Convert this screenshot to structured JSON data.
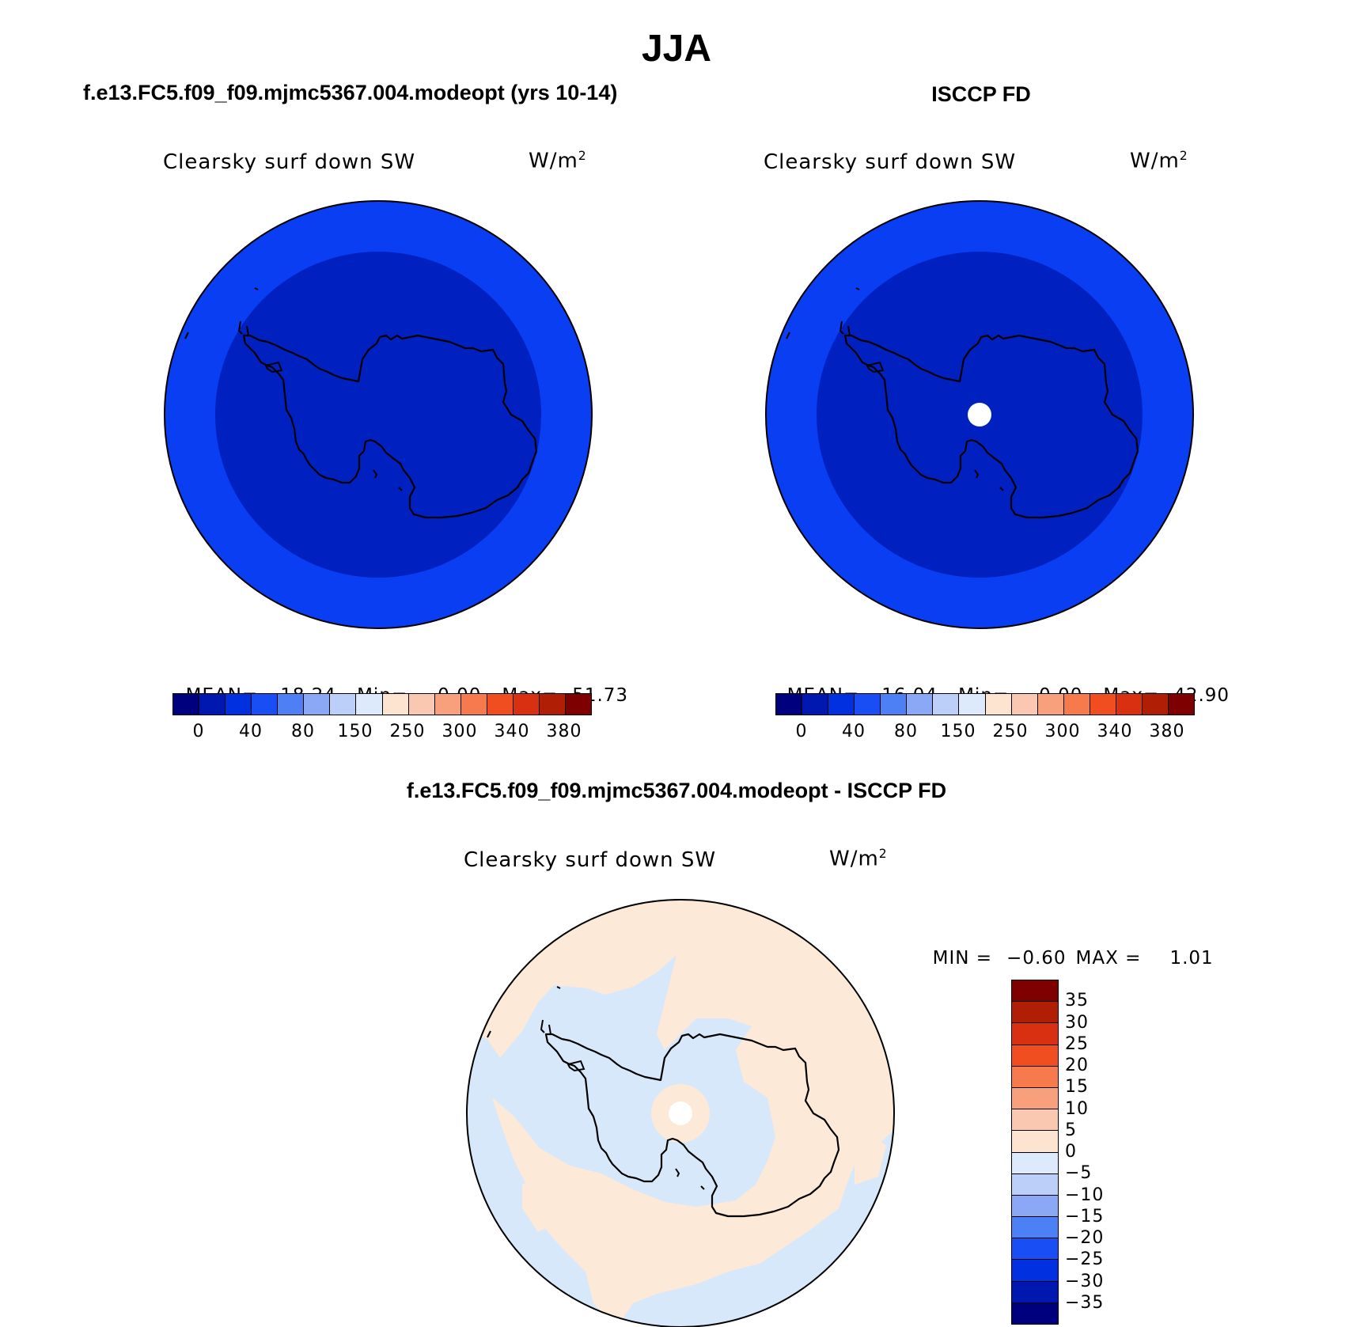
{
  "page": {
    "title": "JJA",
    "left_title": "f.e13.FC5.f09_f09.mjmc5367.004.modeopt (yrs 10-14)",
    "right_title": "ISCCP FD",
    "diff_title": "f.e13.FC5.f09_f09.mjmc5367.004.modeopt - ISCCP FD"
  },
  "panels": {
    "model": {
      "variable": "Clearsky surf down SW",
      "units": "W/m",
      "units_sup": "2",
      "stats_mean_label": "MEAN=",
      "stats_mean": "18.24",
      "stats_min_label": "Min=",
      "stats_min": "0.00",
      "stats_max_label": "Max=",
      "stats_max": "51.73"
    },
    "obs": {
      "variable": "Clearsky surf down SW",
      "units": "W/m",
      "units_sup": "2",
      "stats_mean_label": "MEAN=",
      "stats_mean": "16.04",
      "stats_min_label": "Min=",
      "stats_min": "0.00",
      "stats_max_label": "Max=",
      "stats_max": "42.90"
    },
    "diff": {
      "variable": "Clearsky surf down SW",
      "units": "W/m",
      "units_sup": "2",
      "stats_min_label": "MIN =",
      "stats_min": "−0.60",
      "stats_max_label": "MAX =",
      "stats_max": "1.01"
    }
  },
  "colorbars": {
    "abs": {
      "colors": [
        "#00007f",
        "#0018b0",
        "#0030e0",
        "#1a4ef5",
        "#4d7ff5",
        "#8aa8f5",
        "#bccff8",
        "#dceafb",
        "#fde4d0",
        "#fac8b0",
        "#f8a07c",
        "#f77a4c",
        "#f04e20",
        "#d83010",
        "#b01e06",
        "#7f0000"
      ],
      "tick_labels": [
        "0",
        "40",
        "80",
        "150",
        "250",
        "300",
        "340",
        "380"
      ]
    },
    "diff": {
      "colors_top_to_bottom": [
        "#7f0000",
        "#b01e06",
        "#d83010",
        "#f04e20",
        "#f77a4c",
        "#f8a07c",
        "#fac8b0",
        "#fde4d0",
        "#dceafb",
        "#bccff8",
        "#8aa8f5",
        "#4d7ff5",
        "#1a4ef5",
        "#0030e0",
        "#0018b0",
        "#00007f"
      ],
      "tick_labels": [
        "35",
        "30",
        "25",
        "20",
        "15",
        "10",
        "5",
        "0",
        "−5",
        "−10",
        "−15",
        "−20",
        "−25",
        "−30",
        "−35"
      ]
    }
  },
  "map_colors": {
    "outer_ring": "#0a3ef2",
    "inner_disc": "#0020c0",
    "missing": "#ffffff",
    "diff_positive": "#fde9d8",
    "diff_negative": "#d8e8fb",
    "coast": "#000000"
  }
}
